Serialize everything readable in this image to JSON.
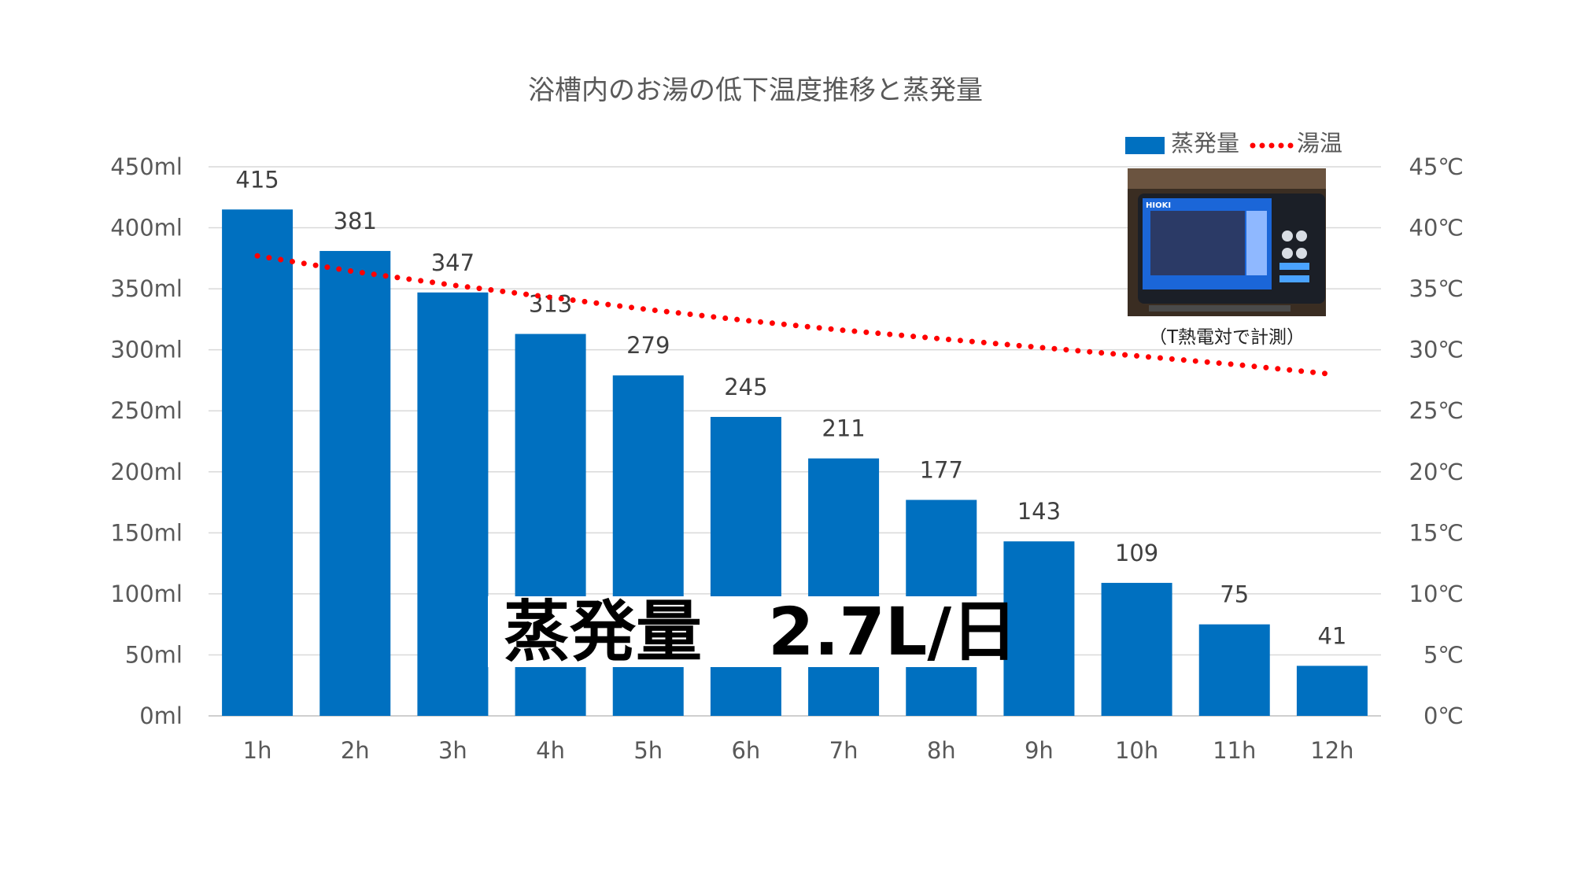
{
  "chart_data": {
    "type": "bar",
    "title": "浴槽内のお湯の低下温度推移と蒸発量",
    "categories": [
      "1h",
      "2h",
      "3h",
      "4h",
      "5h",
      "6h",
      "7h",
      "8h",
      "9h",
      "10h",
      "11h",
      "12h"
    ],
    "series": [
      {
        "name": "蒸発量",
        "type": "bar",
        "axis": "left",
        "color": "#0070C0",
        "values": [
          415,
          381,
          347,
          313,
          279,
          245,
          211,
          177,
          143,
          109,
          75,
          41
        ],
        "labels": [
          "415",
          "381",
          "347",
          "313",
          "279",
          "245",
          "211",
          "177",
          "143",
          "109",
          "75",
          "41"
        ]
      },
      {
        "name": "湯温",
        "type": "line",
        "style": "dotted",
        "axis": "right",
        "color": "#FF0000",
        "values": [
          37.7,
          36.4,
          35.3,
          34.3,
          33.3,
          32.4,
          31.6,
          30.9,
          30.2,
          29.5,
          28.8,
          28.0
        ]
      }
    ],
    "y_left": {
      "ylim": [
        0,
        450
      ],
      "ticks": [
        0,
        50,
        100,
        150,
        200,
        250,
        300,
        350,
        400,
        450
      ],
      "tick_labels": [
        "0ml",
        "50ml",
        "100ml",
        "150ml",
        "200ml",
        "250ml",
        "300ml",
        "350ml",
        "400ml",
        "450ml"
      ]
    },
    "y_right": {
      "ylim": [
        0,
        45
      ],
      "ticks": [
        0,
        5,
        10,
        15,
        20,
        25,
        30,
        35,
        40,
        45
      ],
      "tick_labels": [
        "0℃",
        "5℃",
        "10℃",
        "15℃",
        "20℃",
        "25℃",
        "30℃",
        "35℃",
        "40℃",
        "45℃"
      ]
    },
    "grid": true,
    "legend_position": "top-right",
    "annotation": {
      "overlay_text": "蒸発量　2.7L/日",
      "photo_caption": "（T熱電対で計測）",
      "device_brand": "HIOKI"
    }
  }
}
